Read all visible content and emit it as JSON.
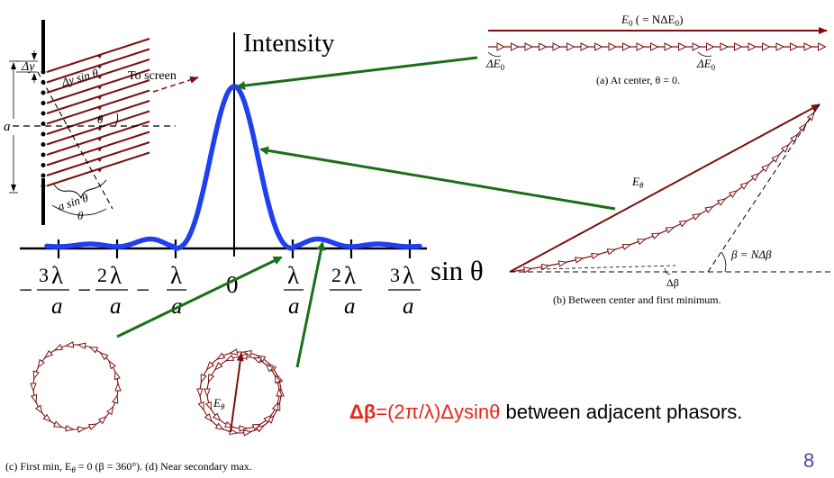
{
  "intensity_label": "Intensity",
  "sin_theta_label": "sin θ",
  "axis_ticks": [
    {
      "num": "3",
      "sym": "λ",
      "den": "a",
      "sign": "−"
    },
    {
      "num": "2",
      "sym": "λ",
      "den": "a",
      "sign": "−"
    },
    {
      "num": "",
      "sym": "λ",
      "den": "a",
      "sign": "−"
    },
    {
      "num": "0",
      "sym": "",
      "den": "",
      "sign": ""
    },
    {
      "num": "",
      "sym": "λ",
      "den": "a",
      "sign": ""
    },
    {
      "num": "2",
      "sym": "λ",
      "den": "a",
      "sign": ""
    },
    {
      "num": "3",
      "sym": "λ",
      "den": "a",
      "sign": ""
    }
  ],
  "slit": {
    "dy": "Δy",
    "dy_sin": "Δy sin θ",
    "to_screen": "To screen",
    "theta": "θ",
    "a": "a",
    "a_sin": "a sin θ",
    "theta_bottom": "θ"
  },
  "phasor_a": {
    "e0_label": "E",
    "e0_sub": "0",
    "e0_rest": " ( = NΔE",
    "e0_rest_sub": "0",
    "e0_close": ")",
    "de0_left": "ΔE",
    "de0_left_sub": "0",
    "de0_right": "ΔE",
    "de0_right_sub": "0",
    "caption": "(a) At center, θ = 0."
  },
  "phasor_b": {
    "e_theta": "E",
    "e_theta_sub": "θ",
    "beta_label": "β = NΔβ",
    "dbeta_label": "Δβ",
    "caption": "(b) Between center and first minimum."
  },
  "phasor_d": {
    "e_theta": "E",
    "e_theta_sub": "θ"
  },
  "bottom_caption": "(c) First min,  E",
  "bottom_caption_sub": "θ",
  "bottom_caption_rest": " = 0 (β = 360°).   (d) Near secondary max.",
  "formula": {
    "bold": "Δβ",
    "eq": "=",
    "expr": "(2π/λ)Δysinθ",
    "rest": " between adjacent phasors."
  },
  "page_number": "8",
  "colors": {
    "curve": "#1f3ff0",
    "phasor": "#7a1010",
    "arrow": "#187018",
    "accent_red": "#e8261c",
    "page_num": "#4a4aa8"
  }
}
